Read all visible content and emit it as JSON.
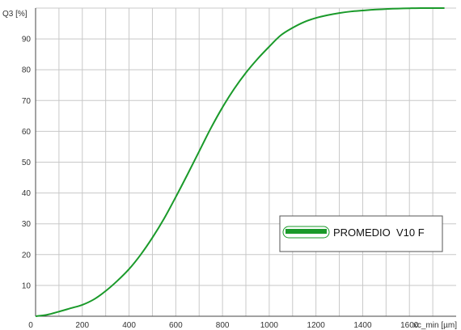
{
  "chart_data": {
    "type": "line",
    "title": "",
    "ylabel": "Q3 [%]",
    "xlabel": "xc_min [µm]",
    "xlim": [
      0,
      1800
    ],
    "ylim": [
      0,
      100
    ],
    "x_ticks": [
      0,
      200,
      400,
      600,
      800,
      1000,
      1200,
      1400,
      1600
    ],
    "x_tick_labels": [
      "0",
      "200",
      "400",
      "600",
      "800",
      "1000",
      "1200",
      "1400",
      "1600"
    ],
    "y_ticks": [
      10,
      20,
      30,
      40,
      50,
      60,
      70,
      80,
      90
    ],
    "y_tick_labels": [
      "10",
      "20",
      "30",
      "40",
      "50",
      "60",
      "70",
      "80",
      "90"
    ],
    "grid": true,
    "legend_position": "right",
    "series": [
      {
        "name": "PROMEDIO  V10 F",
        "color": "#1a9a2a",
        "x": [
          0,
          50,
          100,
          150,
          200,
          250,
          300,
          350,
          400,
          450,
          500,
          550,
          600,
          650,
          700,
          750,
          800,
          850,
          900,
          950,
          1000,
          1050,
          1100,
          1150,
          1200,
          1250,
          1300,
          1350,
          1400,
          1450,
          1500,
          1550,
          1600,
          1650,
          1700,
          1750
        ],
        "y": [
          0,
          0.5,
          1.5,
          2.6,
          3.7,
          5.5,
          8.2,
          11.5,
          15.3,
          20,
          25.5,
          31.7,
          38.7,
          46,
          53.5,
          61,
          67.8,
          73.8,
          79,
          83.5,
          87.5,
          91.2,
          93.6,
          95.5,
          96.8,
          97.7,
          98.4,
          98.9,
          99.2,
          99.5,
          99.7,
          99.85,
          99.95,
          100,
          100,
          100
        ]
      }
    ]
  }
}
